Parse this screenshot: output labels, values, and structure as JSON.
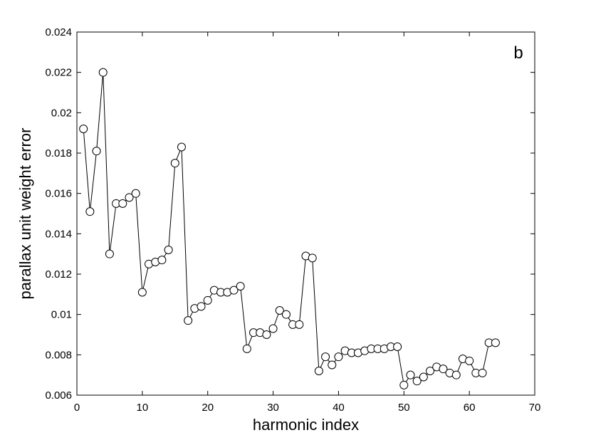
{
  "chart_data": {
    "type": "line",
    "xlabel": "harmonic index",
    "ylabel": "parallax unit weight error",
    "panel_label": "b",
    "xlim": [
      0,
      70
    ],
    "ylim": [
      0.006,
      0.024
    ],
    "xticks": [
      0,
      10,
      20,
      30,
      40,
      50,
      60,
      70
    ],
    "xtick_labels": [
      "0",
      "10",
      "20",
      "30",
      "40",
      "50",
      "60",
      "70"
    ],
    "yticks": [
      0.006,
      0.008,
      0.01,
      0.012,
      0.014,
      0.016,
      0.018,
      0.02,
      0.022,
      0.024
    ],
    "ytick_labels": [
      "0.006",
      "0.008",
      "0.01",
      "0.012",
      "0.014",
      "0.016",
      "0.018",
      "0.02",
      "0.022",
      "0.024"
    ],
    "grid": false,
    "marker": "open-circle",
    "line_color": "#000000",
    "series": [
      {
        "x": [
          1,
          2,
          3,
          4,
          5,
          6,
          7,
          8,
          9,
          10,
          11,
          12,
          13,
          14,
          15,
          16,
          17,
          18,
          19,
          20,
          21,
          22,
          23,
          24,
          25,
          26,
          27,
          28,
          29,
          30,
          31,
          32,
          33,
          34,
          35,
          36,
          37,
          38,
          39,
          40,
          41,
          42,
          43,
          44,
          45,
          46,
          47,
          48,
          49,
          50,
          51,
          52,
          53,
          54,
          55,
          56,
          57,
          58,
          59,
          60,
          61,
          62,
          63,
          64
        ],
        "y": [
          0.0192,
          0.0151,
          0.0181,
          0.022,
          0.013,
          0.0155,
          0.0155,
          0.0158,
          0.016,
          0.0111,
          0.0125,
          0.0126,
          0.0127,
          0.0132,
          0.0175,
          0.0183,
          0.0097,
          0.0103,
          0.0104,
          0.0107,
          0.0112,
          0.0111,
          0.0111,
          0.0112,
          0.0114,
          0.0083,
          0.0091,
          0.0091,
          0.009,
          0.0093,
          0.0102,
          0.01,
          0.0095,
          0.0095,
          0.0129,
          0.0128,
          0.0072,
          0.0079,
          0.0075,
          0.0079,
          0.0082,
          0.0081,
          0.0081,
          0.0082,
          0.0083,
          0.0083,
          0.0083,
          0.0084,
          0.0084,
          0.0065,
          0.007,
          0.0067,
          0.0069,
          0.0072,
          0.0074,
          0.0073,
          0.0071,
          0.007,
          0.0078,
          0.0077,
          0.0071,
          0.0071,
          0.0086,
          0.0086
        ]
      }
    ]
  }
}
